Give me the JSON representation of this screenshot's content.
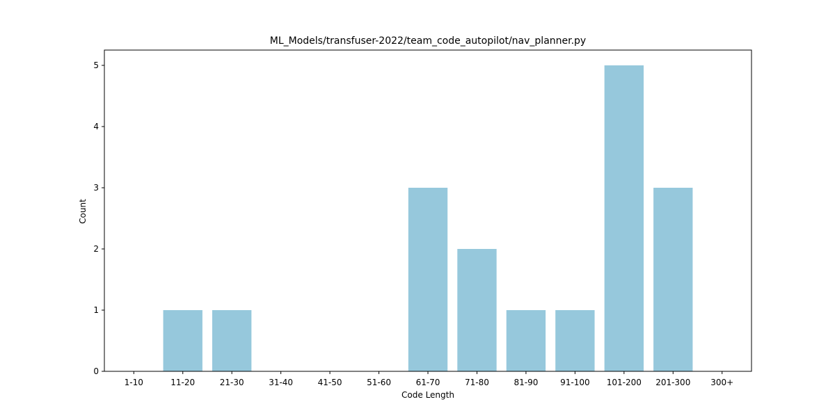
{
  "chart_data": {
    "type": "bar",
    "title": "ML_Models/transfuser-2022/team_code_autopilot/nav_planner.py",
    "xlabel": "Code Length",
    "ylabel": "Count",
    "categories": [
      "1-10",
      "11-20",
      "21-30",
      "31-40",
      "41-50",
      "51-60",
      "61-70",
      "71-80",
      "81-90",
      "91-100",
      "101-200",
      "201-300",
      "300+"
    ],
    "values": [
      0,
      1,
      1,
      0,
      0,
      0,
      3,
      2,
      1,
      1,
      5,
      3,
      0
    ],
    "ylim": [
      0,
      5.25
    ],
    "yticks": [
      0,
      1,
      2,
      3,
      4,
      5
    ],
    "bar_color": "#96c8dc",
    "grid": false,
    "legend": "none"
  }
}
